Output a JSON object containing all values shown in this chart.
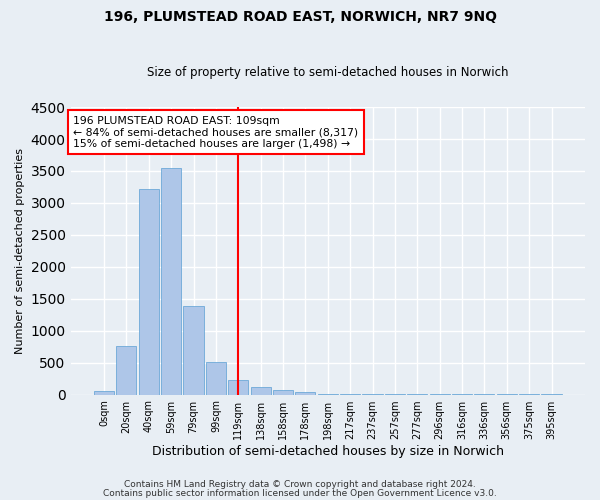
{
  "title": "196, PLUMSTEAD ROAD EAST, NORWICH, NR7 9NQ",
  "subtitle": "Size of property relative to semi-detached houses in Norwich",
  "xlabel": "Distribution of semi-detached houses by size in Norwich",
  "ylabel": "Number of semi-detached properties",
  "footnote1": "Contains HM Land Registry data © Crown copyright and database right 2024.",
  "footnote2": "Contains public sector information licensed under the Open Government Licence v3.0.",
  "bar_labels": [
    "0sqm",
    "20sqm",
    "40sqm",
    "59sqm",
    "79sqm",
    "99sqm",
    "119sqm",
    "138sqm",
    "158sqm",
    "178sqm",
    "198sqm",
    "217sqm",
    "237sqm",
    "257sqm",
    "277sqm",
    "296sqm",
    "316sqm",
    "336sqm",
    "356sqm",
    "375sqm",
    "395sqm"
  ],
  "bar_values": [
    60,
    760,
    3220,
    3540,
    1390,
    510,
    235,
    120,
    75,
    35,
    5,
    5,
    5,
    5,
    5,
    5,
    5,
    5,
    5,
    5,
    5
  ],
  "bar_color": "#aec6e8",
  "bar_edge_color": "#5a9fd4",
  "vline_x": 6.0,
  "vline_color": "red",
  "annotation_title": "196 PLUMSTEAD ROAD EAST: 109sqm",
  "annotation_line1": "← 84% of semi-detached houses are smaller (8,317)",
  "annotation_line2": "15% of semi-detached houses are larger (1,498) →",
  "annotation_box_color": "red",
  "ylim": [
    0,
    4500
  ],
  "background_color": "#e8eef4",
  "grid_color": "white"
}
